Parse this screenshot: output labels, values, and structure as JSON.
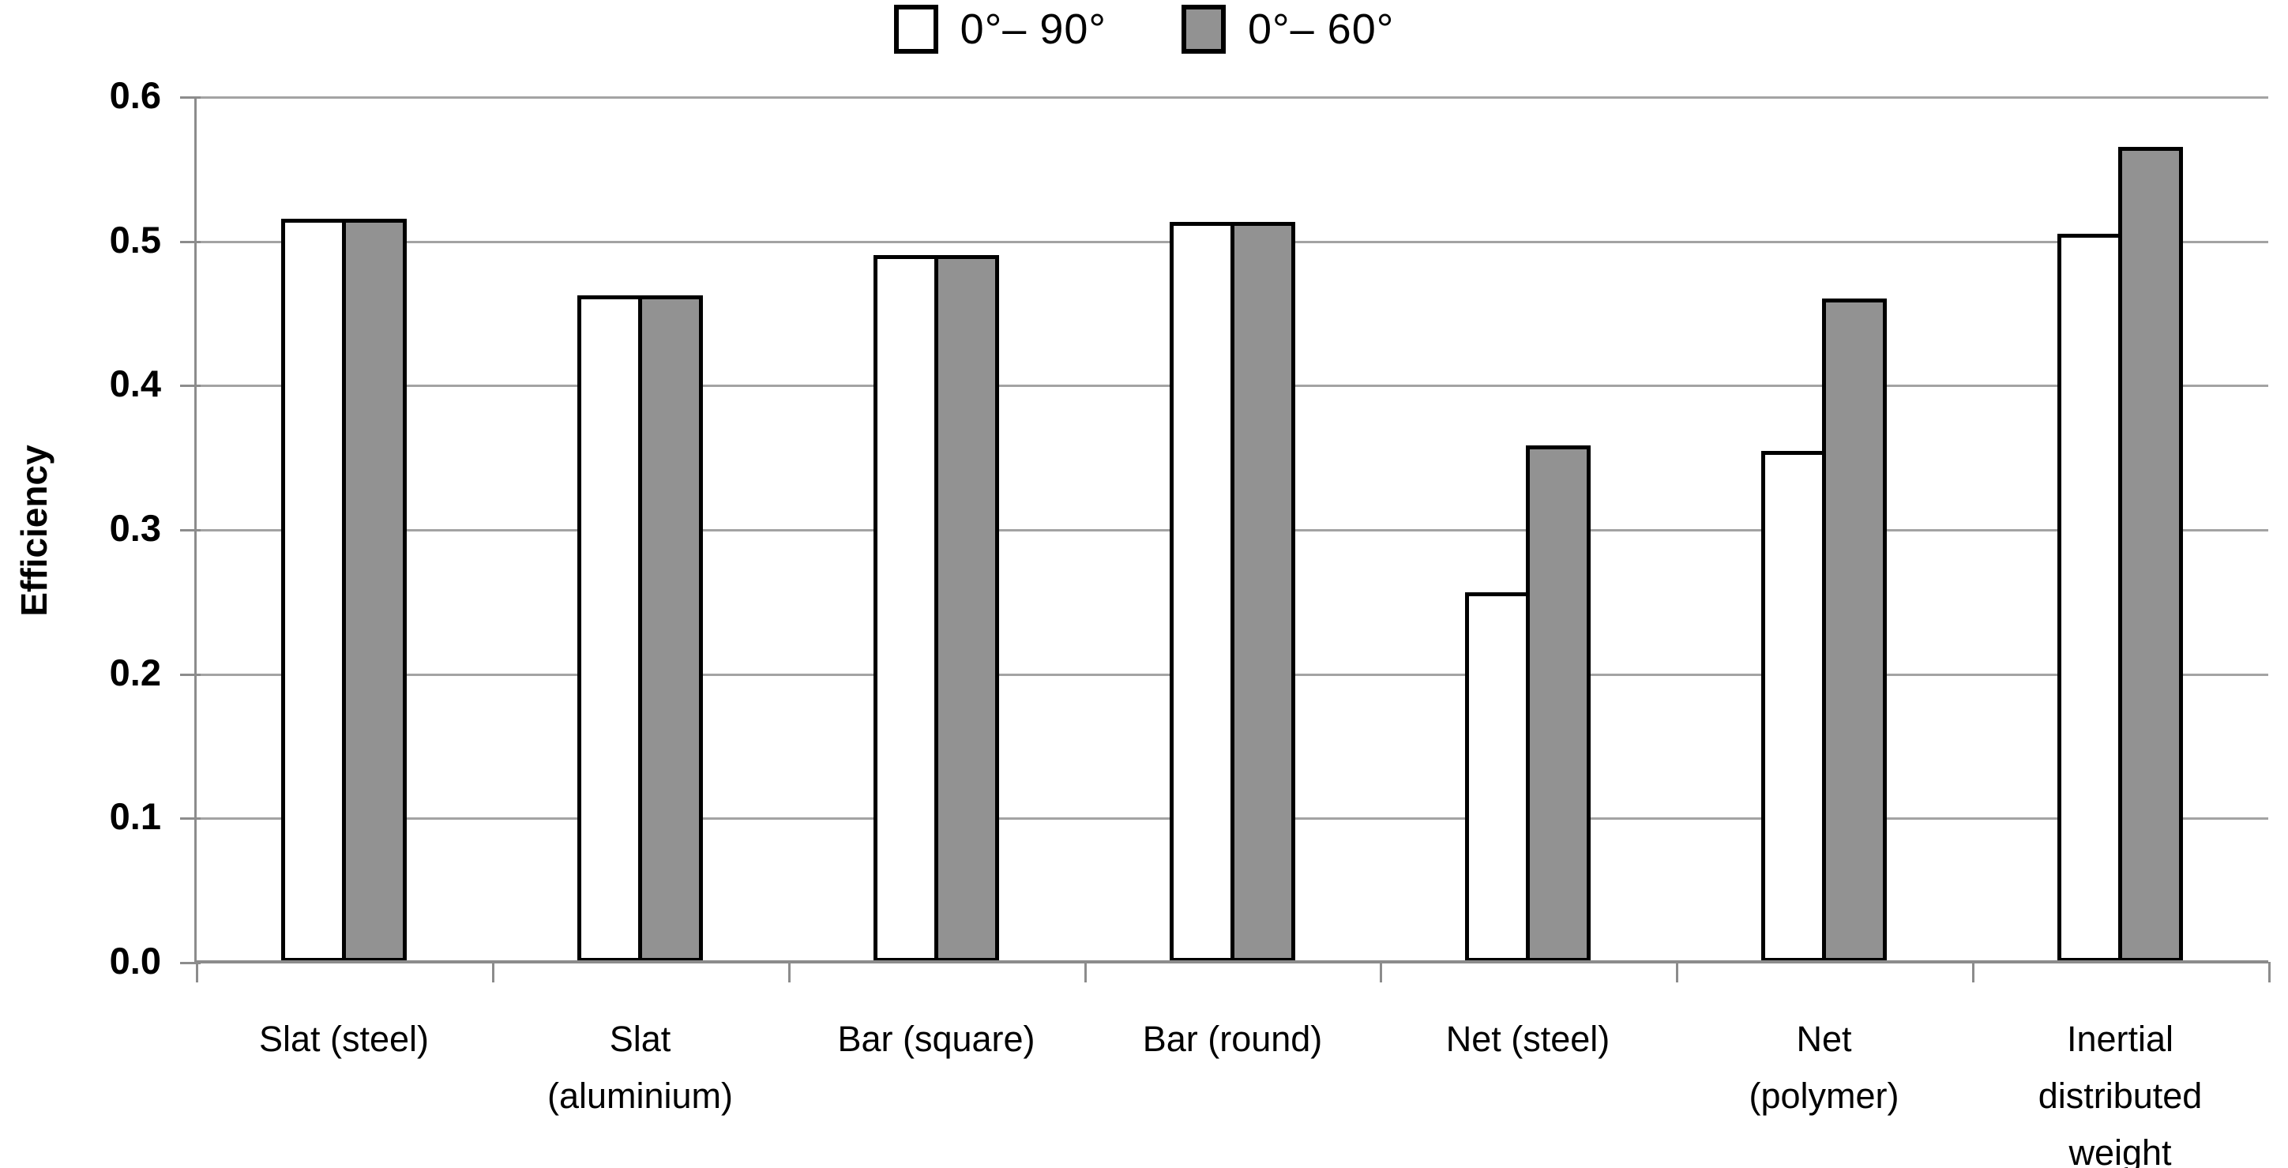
{
  "chart_data": {
    "type": "bar",
    "title": "",
    "xlabel": "",
    "ylabel": "Efficiency",
    "ylim": [
      0.0,
      0.6
    ],
    "ytick_step": 0.1,
    "ytick_labels": [
      "0.0",
      "0.1",
      "0.2",
      "0.3",
      "0.4",
      "0.5",
      "0.6"
    ],
    "grid": "horizontal",
    "legend_position": "top-center",
    "categories": [
      "Slat (steel)",
      "Slat (aluminium)",
      "Bar (square)",
      "Bar (round)",
      "Net (steel)",
      "Net (polymer)",
      "Inertial distributed weight"
    ],
    "series": [
      {
        "name": "0°– 90°",
        "fill": "#ffffff",
        "values": [
          0.515,
          0.462,
          0.49,
          0.513,
          0.256,
          0.354,
          0.505
        ]
      },
      {
        "name": "0°– 60°",
        "fill": "#929292",
        "values": [
          0.515,
          0.462,
          0.49,
          0.513,
          0.358,
          0.46,
          0.565
        ]
      }
    ]
  },
  "colors": {
    "bar_border": "#000000",
    "gridline": "#a3a3a3",
    "axis": "#8c8c8c",
    "text": "#000000",
    "background": "#ffffff"
  }
}
